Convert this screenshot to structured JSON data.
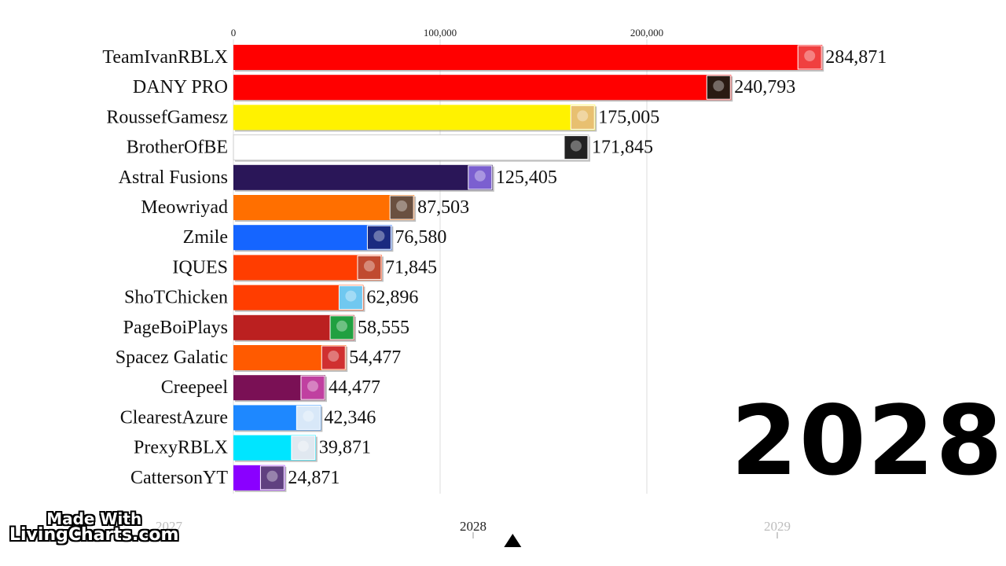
{
  "chart_data": {
    "type": "bar",
    "orientation": "horizontal",
    "title": "",
    "xlabel": "",
    "ylabel": "",
    "xlim": [
      0,
      290000
    ],
    "x_ticks": [
      {
        "value": 0,
        "label": "0"
      },
      {
        "value": 100000,
        "label": "100,000"
      },
      {
        "value": 200000,
        "label": "200,000"
      }
    ],
    "grid": true,
    "categories": [
      "TeamIvanRBLX",
      "DANY PRO",
      "RoussefGamesz",
      "BrotherOfBE",
      "Astral Fusions",
      "Meowriyad",
      "Zmile",
      "IQUES",
      "ShoTChicken",
      "PageBoiPlays",
      "Spacez Galatic",
      "Creepeel",
      "ClearestAzure",
      "PrexyRBLX",
      "CattersonYT"
    ],
    "values": [
      284871,
      240793,
      175005,
      171845,
      125405,
      87503,
      76580,
      71845,
      62896,
      58555,
      54477,
      44477,
      42346,
      39871,
      24871
    ],
    "value_labels": [
      "284,871",
      "240,793",
      "175,005",
      "171,845",
      "125,405",
      "87,503",
      "76,580",
      "71,845",
      "62,896",
      "58,555",
      "54,477",
      "44,477",
      "42,346",
      "39,871",
      "24,871"
    ],
    "colors": [
      "#ff0000",
      "#ff0000",
      "#fff200",
      "#ffffff",
      "#2a1658",
      "#ff6f00",
      "#1565ff",
      "#ff3d00",
      "#ff3d00",
      "#bb2020",
      "#ff5a00",
      "#7a1055",
      "#1e88ff",
      "#00e5ff",
      "#8a00ff"
    ],
    "avatar_colors": [
      "#f04040",
      "#2a1a12",
      "#e8c070",
      "#222222",
      "#7b5fd0",
      "#6a5040",
      "#1a2a80",
      "#c04a30",
      "#70c8f0",
      "#20a040",
      "#d03030",
      "#c040a0",
      "#d8e8f8",
      "#e0e8f0",
      "#604080"
    ]
  },
  "year_display": "2028",
  "timeline": {
    "labels": [
      "2027",
      "2028",
      "2029"
    ],
    "current_label": "2028",
    "label_values": [
      2027,
      2028,
      2029
    ],
    "marker_value": 2028.13
  },
  "watermark": {
    "line1": "Made With",
    "line2": "LivingCharts.com"
  }
}
